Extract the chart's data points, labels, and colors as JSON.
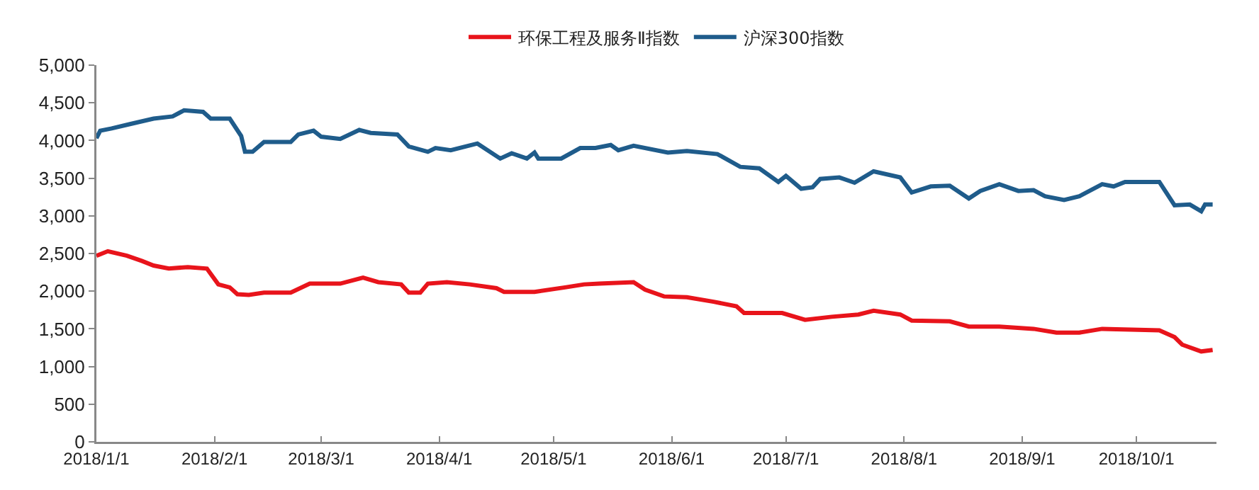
{
  "chart_data": {
    "type": "line",
    "legend": "top",
    "grid": false,
    "line_style": "solid",
    "marker": "none",
    "xlim": [
      "2018-01-01",
      "2018-10-22"
    ],
    "xticks": [
      {
        "value": "2018-01-01",
        "label": "2018/1/1"
      },
      {
        "value": "2018-02-01",
        "label": "2018/2/1"
      },
      {
        "value": "2018-03-01",
        "label": "2018/3/1"
      },
      {
        "value": "2018-04-01",
        "label": "2018/4/1"
      },
      {
        "value": "2018-05-01",
        "label": "2018/5/1"
      },
      {
        "value": "2018-06-01",
        "label": "2018/6/1"
      },
      {
        "value": "2018-07-01",
        "label": "2018/7/1"
      },
      {
        "value": "2018-08-01",
        "label": "2018/8/1"
      },
      {
        "value": "2018-09-01",
        "label": "2018/9/1"
      },
      {
        "value": "2018-10-01",
        "label": "2018/10/1"
      }
    ],
    "ylim": [
      0,
      5000
    ],
    "yticks": [
      0,
      500,
      {
        "value": 1000,
        "label": "1,000"
      },
      {
        "value": 1500,
        "label": "1,500"
      },
      {
        "value": 2000,
        "label": "2,000"
      },
      {
        "value": 2500,
        "label": "2,500"
      },
      {
        "value": 3000,
        "label": "3,000"
      },
      {
        "value": 3500,
        "label": "3,500"
      },
      {
        "value": 4000,
        "label": "4,000"
      },
      {
        "value": 4500,
        "label": "4,500"
      },
      {
        "value": 5000,
        "label": "5,000"
      }
    ],
    "series": [
      {
        "name": "环保工程及服务Ⅱ指数",
        "color": "#e8141b",
        "x": [
          "2018-01-01",
          "2018-01-04",
          "2018-01-09",
          "2018-01-13",
          "2018-01-16",
          "2018-01-20",
          "2018-01-25",
          "2018-01-30",
          "2018-02-02",
          "2018-02-05",
          "2018-02-07",
          "2018-02-10",
          "2018-02-14",
          "2018-02-21",
          "2018-02-26",
          "2018-03-06",
          "2018-03-12",
          "2018-03-16",
          "2018-03-22",
          "2018-03-24",
          "2018-03-27",
          "2018-03-29",
          "2018-04-03",
          "2018-04-09",
          "2018-04-16",
          "2018-04-18",
          "2018-04-26",
          "2018-05-04",
          "2018-05-09",
          "2018-05-13",
          "2018-05-22",
          "2018-05-25",
          "2018-05-30",
          "2018-06-05",
          "2018-06-12",
          "2018-06-18",
          "2018-06-20",
          "2018-06-30",
          "2018-07-06",
          "2018-07-13",
          "2018-07-20",
          "2018-07-24",
          "2018-07-31",
          "2018-08-03",
          "2018-08-13",
          "2018-08-18",
          "2018-08-26",
          "2018-09-04",
          "2018-09-10",
          "2018-09-16",
          "2018-09-22",
          "2018-10-07",
          "2018-10-11",
          "2018-10-13",
          "2018-10-18",
          "2018-10-21"
        ],
        "values": [
          2470,
          2530,
          2470,
          2400,
          2340,
          2300,
          2320,
          2300,
          2090,
          2050,
          1960,
          1950,
          1980,
          1980,
          2100,
          2100,
          2180,
          2120,
          2090,
          1980,
          1980,
          2100,
          2120,
          2090,
          2040,
          1990,
          1990,
          2050,
          2090,
          2100,
          2120,
          2020,
          1930,
          1920,
          1860,
          1800,
          1710,
          1710,
          1620,
          1660,
          1690,
          1740,
          1690,
          1610,
          1600,
          1530,
          1530,
          1500,
          1450,
          1450,
          1500,
          1480,
          1390,
          1290,
          1200,
          1220
        ]
      },
      {
        "name": "沪深300指数",
        "color": "#1f5c8b",
        "x": [
          "2018-01-01",
          "2018-01-02",
          "2018-01-05",
          "2018-01-10",
          "2018-01-16",
          "2018-01-21",
          "2018-01-24",
          "2018-01-29",
          "2018-01-31",
          "2018-02-05",
          "2018-02-08",
          "2018-02-09",
          "2018-02-11",
          "2018-02-14",
          "2018-02-21",
          "2018-02-23",
          "2018-02-27",
          "2018-03-01",
          "2018-03-06",
          "2018-03-11",
          "2018-03-14",
          "2018-03-21",
          "2018-03-24",
          "2018-03-29",
          "2018-03-31",
          "2018-04-04",
          "2018-04-11",
          "2018-04-17",
          "2018-04-20",
          "2018-04-24",
          "2018-04-26",
          "2018-04-27",
          "2018-05-03",
          "2018-05-08",
          "2018-05-12",
          "2018-05-16",
          "2018-05-18",
          "2018-05-22",
          "2018-05-31",
          "2018-06-05",
          "2018-06-13",
          "2018-06-19",
          "2018-06-24",
          "2018-06-29",
          "2018-07-01",
          "2018-07-05",
          "2018-07-08",
          "2018-07-10",
          "2018-07-15",
          "2018-07-19",
          "2018-07-24",
          "2018-07-31",
          "2018-08-03",
          "2018-08-08",
          "2018-08-13",
          "2018-08-18",
          "2018-08-21",
          "2018-08-26",
          "2018-08-31",
          "2018-09-04",
          "2018-09-07",
          "2018-09-12",
          "2018-09-16",
          "2018-09-22",
          "2018-09-25",
          "2018-09-28",
          "2018-10-07",
          "2018-10-11",
          "2018-10-15",
          "2018-10-18",
          "2018-10-19",
          "2018-10-21"
        ],
        "values": [
          4030,
          4130,
          4160,
          4220,
          4290,
          4320,
          4400,
          4380,
          4290,
          4290,
          4060,
          3850,
          3850,
          3980,
          3980,
          4080,
          4130,
          4050,
          4020,
          4140,
          4100,
          4080,
          3920,
          3850,
          3900,
          3870,
          3960,
          3760,
          3830,
          3760,
          3840,
          3760,
          3760,
          3900,
          3900,
          3940,
          3870,
          3930,
          3840,
          3860,
          3820,
          3650,
          3630,
          3450,
          3530,
          3360,
          3380,
          3490,
          3510,
          3440,
          3590,
          3510,
          3310,
          3390,
          3400,
          3230,
          3330,
          3420,
          3330,
          3340,
          3260,
          3210,
          3260,
          3420,
          3390,
          3450,
          3450,
          3140,
          3150,
          3060,
          3150,
          3150
        ]
      }
    ]
  }
}
